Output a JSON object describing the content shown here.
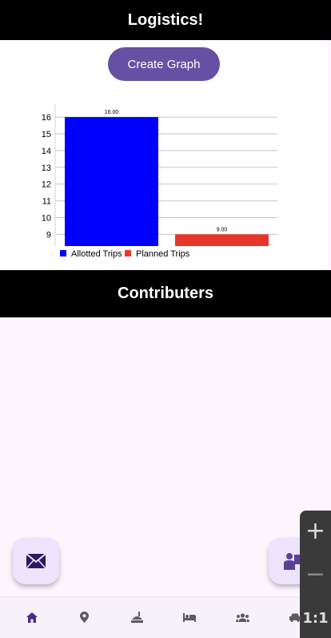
{
  "header": {
    "title": "Logistics!"
  },
  "actions": {
    "create_graph_label": "Create Graph"
  },
  "chart_data": {
    "type": "bar",
    "categories": [
      "Allotted Trips",
      "Planned Trips"
    ],
    "values": [
      16.0,
      9.0
    ],
    "value_labels": [
      "16.00",
      "9.00"
    ],
    "colors": [
      "#0000ff",
      "#e8362b"
    ],
    "y_ticks": [
      "9",
      "10",
      "11",
      "12",
      "13",
      "14",
      "15",
      "16"
    ],
    "ylim": [
      8.3,
      16.6
    ],
    "legend": [
      {
        "label": "Allotted Trips",
        "color": "#0000ff"
      },
      {
        "label": "Planned Trips",
        "color": "#e8362b"
      }
    ],
    "legend_placement": "bottom-left",
    "grid": true,
    "title": "",
    "xlabel": "",
    "ylabel": ""
  },
  "contributors": {
    "title": "Contributers"
  },
  "fabs": {
    "left_icon": "mail-icon",
    "right_icon": "people-icon"
  },
  "zoom": {
    "in": "+",
    "out": "−",
    "reset": "1:1"
  },
  "bottom_nav": {
    "items": [
      {
        "icon": "home-icon",
        "active": true
      },
      {
        "icon": "location-pin-icon",
        "active": false
      },
      {
        "icon": "restaurant-icon",
        "active": false
      },
      {
        "icon": "hotel-bed-icon",
        "active": false
      },
      {
        "icon": "group-icon",
        "active": false
      },
      {
        "icon": "car-icon",
        "active": false
      }
    ],
    "active_color": "#4a2a8a",
    "inactive_color": "#5d5a63"
  }
}
